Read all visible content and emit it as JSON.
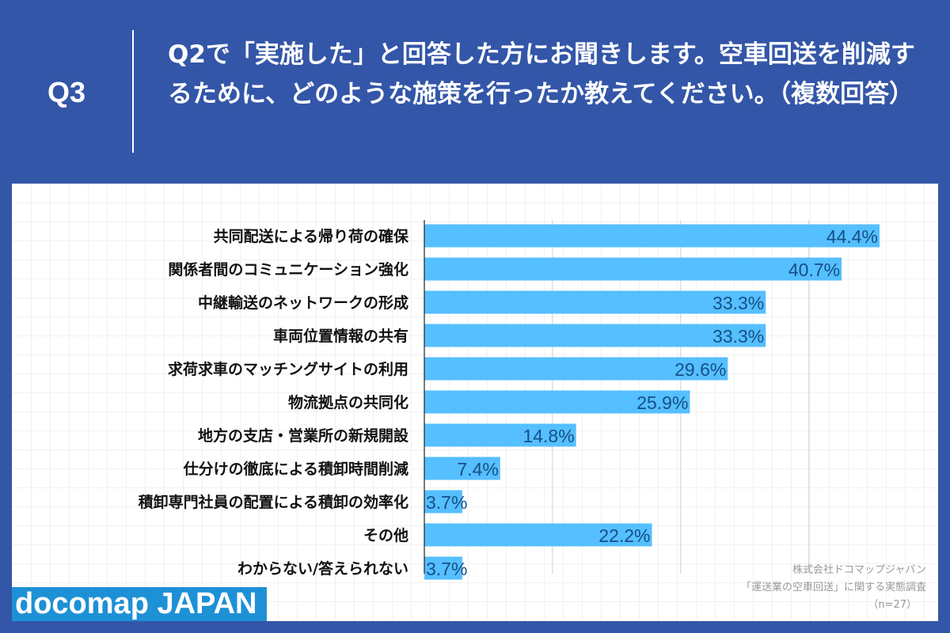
{
  "header": {
    "q_number": "Q3",
    "question": "Q2で「実施した」と回答した方にお聞きします。空車回送を削減するために、どのような施策を行ったか教えてください。（複数回答）"
  },
  "chart_data": {
    "type": "bar",
    "orientation": "horizontal",
    "categories": [
      "共同配送による帰り荷の確保",
      "関係者間のコミュニケーション強化",
      "中継輸送のネットワークの形成",
      "車両位置情報の共有",
      "求荷求車のマッチングサイトの利用",
      "物流拠点の共同化",
      "地方の支店・営業所の新規開設",
      "仕分けの徹底による積卸時間削減",
      "積卸専門社員の配置による積卸の効率化",
      "その他",
      "わからない/答えられない"
    ],
    "values": [
      44.4,
      40.7,
      33.3,
      33.3,
      29.6,
      25.9,
      14.8,
      7.4,
      3.7,
      22.2,
      3.7
    ],
    "data_labels": [
      "44.4%",
      "40.7%",
      "33.3%",
      "33.3%",
      "29.6%",
      "25.9%",
      "14.8%",
      "7.4%",
      "3.7%",
      "22.2%",
      "3.7%"
    ],
    "xlim": [
      0,
      50
    ],
    "grid_step": 12.5,
    "grid": true,
    "bar_color": "#55bfff",
    "label_color": "#154f86"
  },
  "source": {
    "company": "株式会社ドコマップジャパン",
    "survey": "「運送業の空車回送」に関する実態調査",
    "n": "（n=27）"
  },
  "logo": "docomap JAPAN",
  "colors": {
    "background": "#3356a8",
    "logo_bg": "#1e90d6"
  }
}
